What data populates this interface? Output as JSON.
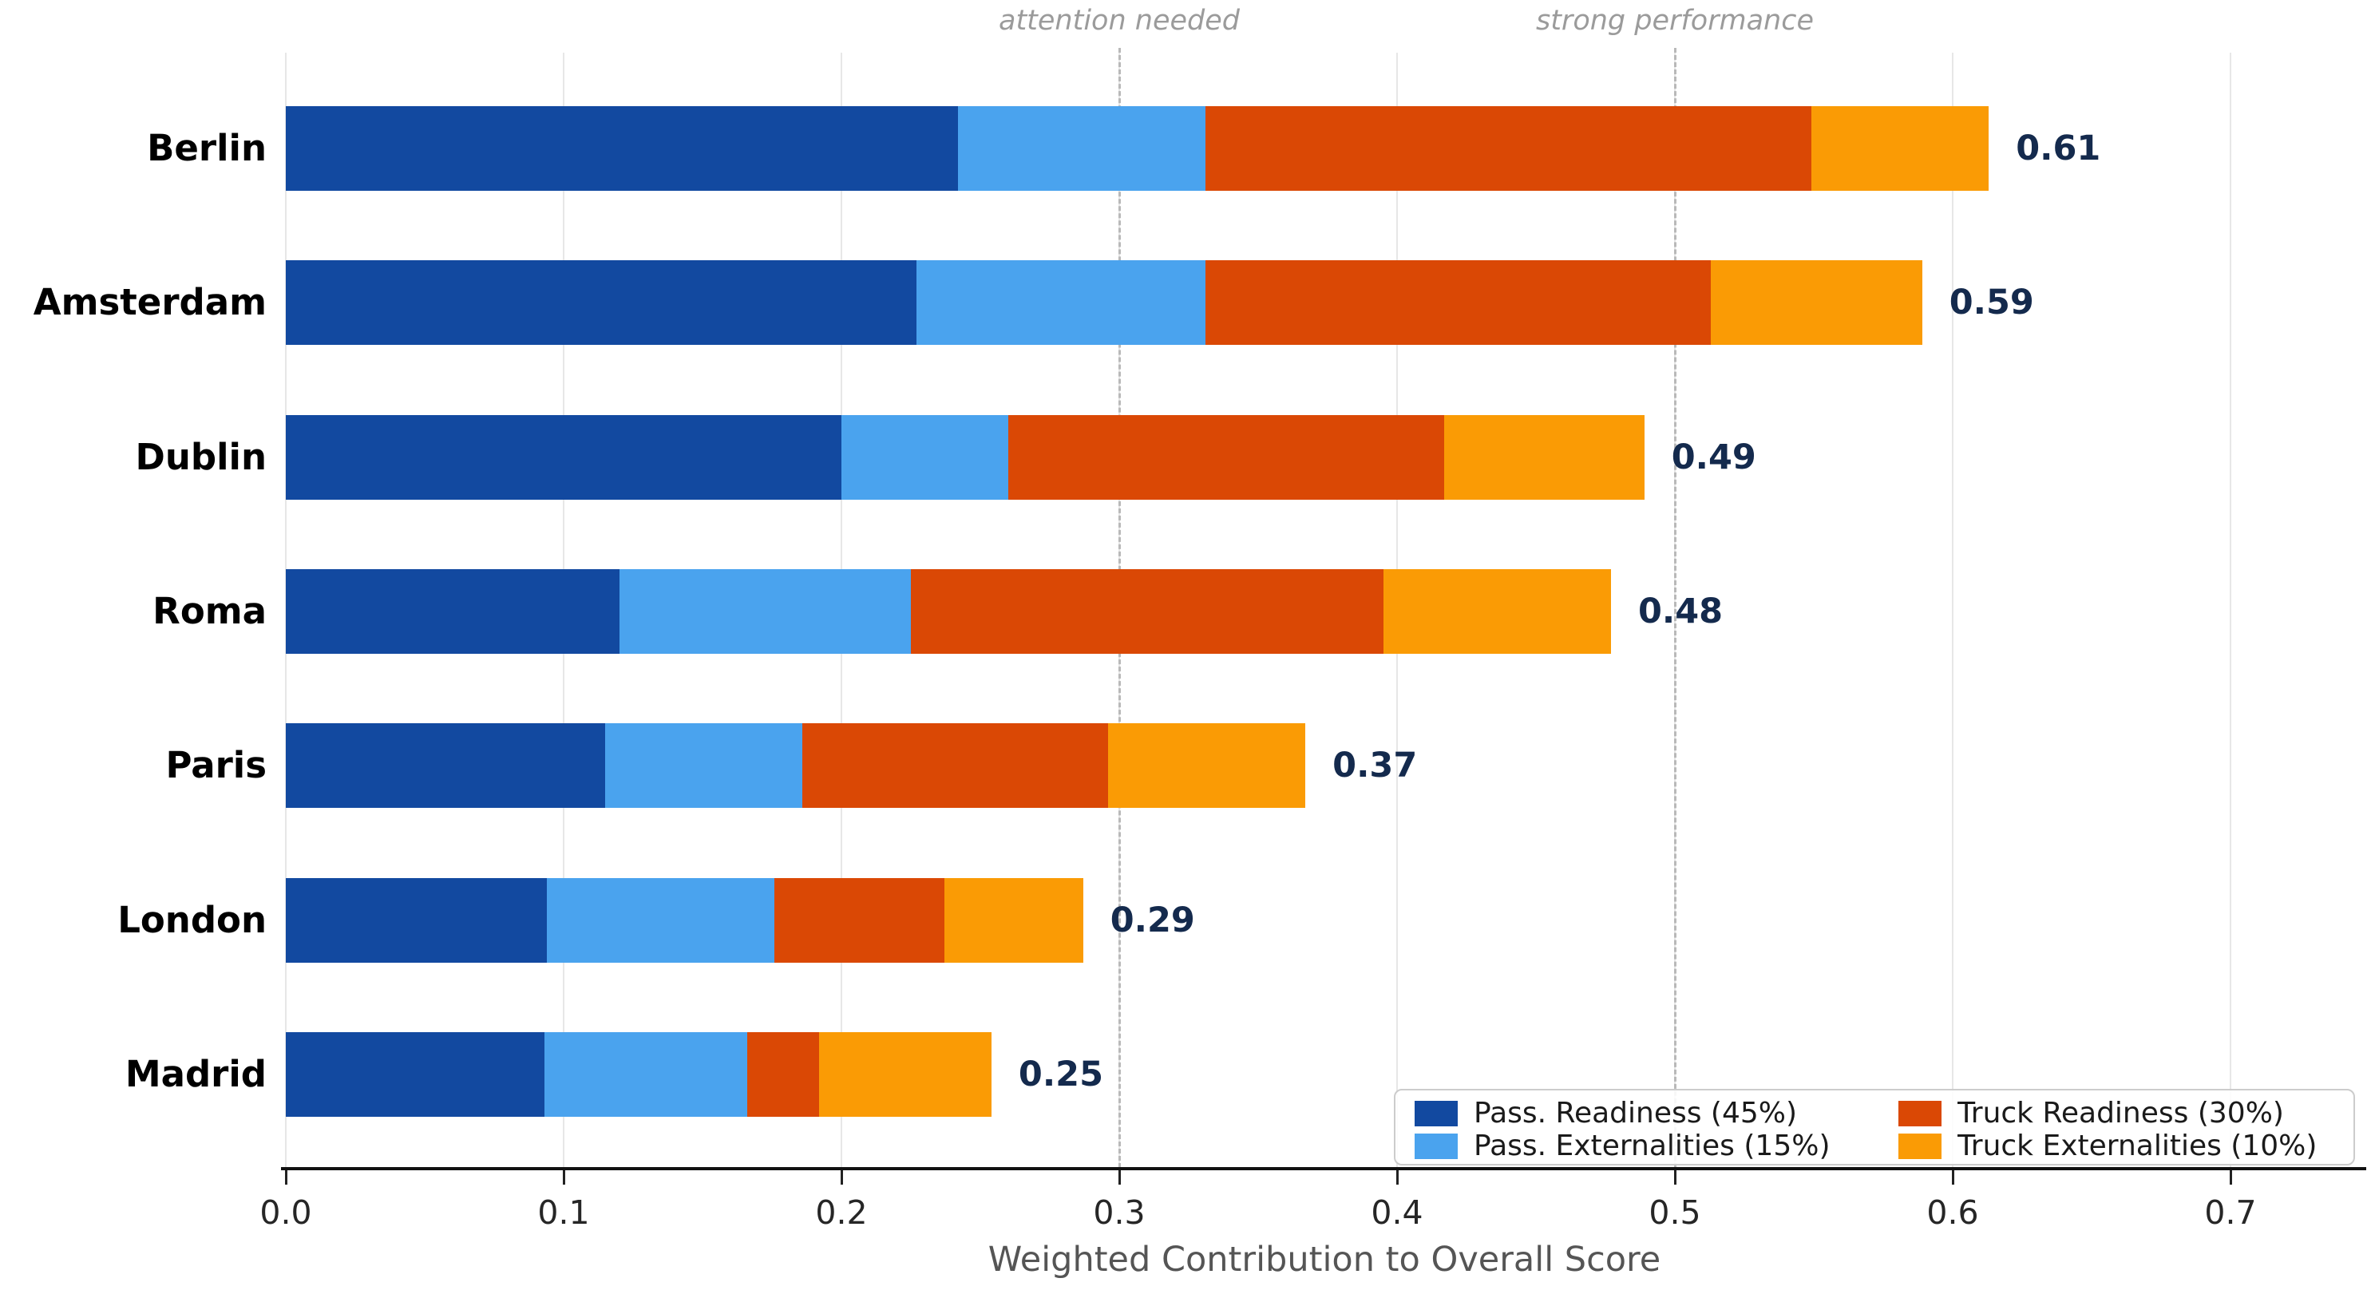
{
  "chart_data": {
    "type": "bar",
    "variant": "horizontal-stacked",
    "title": "",
    "xlabel": "Weighted Contribution to Overall Score",
    "ylabel": "",
    "xlim": [
      0,
      0.74
    ],
    "x_ticks": [
      "0.0",
      "0.1",
      "0.2",
      "0.3",
      "0.4",
      "0.5",
      "0.6",
      "0.7"
    ],
    "grid": "vertical light-gray gridlines at 0.1 steps",
    "legend_position": "lower right",
    "categories": [
      "Berlin",
      "Amsterdam",
      "Dublin",
      "Roma",
      "Paris",
      "London",
      "Madrid"
    ],
    "series": [
      {
        "name": "Pass. Readiness (45%)",
        "color": "#1249A0",
        "values": [
          0.242,
          0.227,
          0.2,
          0.12,
          0.115,
          0.094,
          0.093
        ]
      },
      {
        "name": "Pass. Externalities (15%)",
        "color": "#4AA3EE",
        "values": [
          0.089,
          0.104,
          0.06,
          0.105,
          0.071,
          0.082,
          0.073
        ]
      },
      {
        "name": "Truck Readiness (30%)",
        "color": "#DA4805",
        "values": [
          0.218,
          0.182,
          0.157,
          0.17,
          0.11,
          0.061,
          0.026
        ]
      },
      {
        "name": "Truck Externalities (10%)",
        "color": "#FA9B05",
        "values": [
          0.064,
          0.076,
          0.072,
          0.082,
          0.071,
          0.05,
          0.062
        ]
      }
    ],
    "total_labels": [
      "0.61",
      "0.59",
      "0.49",
      "0.48",
      "0.37",
      "0.29",
      "0.25"
    ],
    "thresholds": [
      {
        "label": "attention needed",
        "x": 0.3
      },
      {
        "label": "strong performance",
        "x": 0.5
      }
    ],
    "colors": {
      "total_label": "#142a4d",
      "gridline": "#e7e7e7",
      "threshold_line": "#b9b9b9",
      "annotation_text": "#9b9b9b",
      "axis_text": "#262626",
      "axis_title": "#555555"
    }
  }
}
